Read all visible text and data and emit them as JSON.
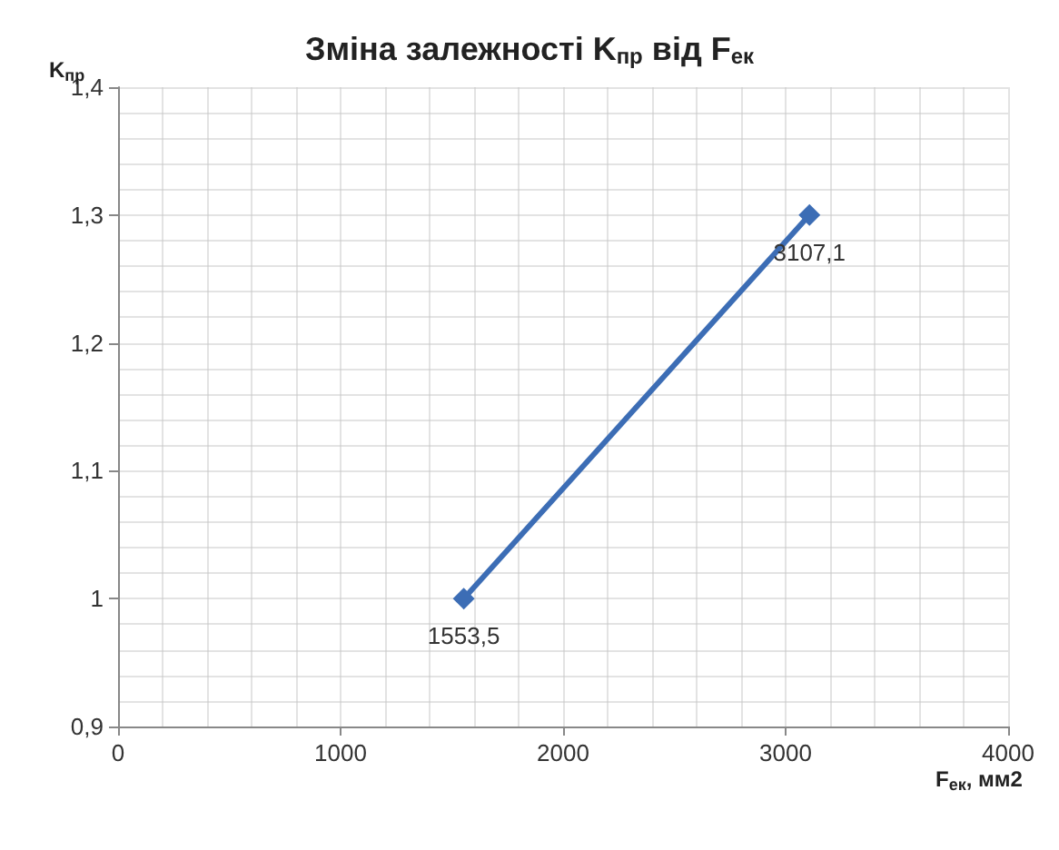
{
  "chart_data": {
    "type": "line",
    "title": "Зміна залежності K$_{пр}$ від F$_{ек}$",
    "xlabel": "F$_{ек}$, мм2",
    "ylabel": "K$_{пр}$",
    "x": [
      1553.5,
      3107.1
    ],
    "series": [
      {
        "color": "#3c6db5",
        "values": [
          1,
          1.3
        ]
      }
    ],
    "annotations": [
      {
        "text": "1553,5",
        "x": 1553.5,
        "y": 1
      },
      {
        "text": "3107,1",
        "x": 3107.1,
        "y": 1.3
      }
    ],
    "xlim": [
      0,
      4000
    ],
    "xticks": [
      0,
      {
        "value": 200,
        "label": null
      },
      {
        "value": 400,
        "label": null
      },
      {
        "value": 600,
        "label": null
      },
      {
        "value": 800,
        "label": null
      },
      1000,
      {
        "value": 1200,
        "label": null
      },
      {
        "value": 1400,
        "label": null
      },
      {
        "value": 1600,
        "label": null
      },
      {
        "value": 1800,
        "label": null
      },
      2000,
      {
        "value": 2200,
        "label": null
      },
      {
        "value": 2400,
        "label": null
      },
      {
        "value": 2600,
        "label": null
      },
      {
        "value": 2800,
        "label": null
      },
      3000,
      {
        "value": 3200,
        "label": null
      },
      {
        "value": 3400,
        "label": null
      },
      {
        "value": 3600,
        "label": null
      },
      {
        "value": 3800,
        "label": null
      },
      4000
    ],
    "ylim": [
      0.9,
      1.4
    ],
    "yticks": [
      {
        "value": 0.9,
        "label": "0,9"
      },
      {
        "value": 0.92,
        "label": null
      },
      {
        "value": 0.94,
        "label": null
      },
      {
        "value": 0.96,
        "label": null
      },
      {
        "value": 0.98,
        "label": null
      },
      1,
      {
        "value": 1.02,
        "label": null
      },
      {
        "value": 1.04,
        "label": null
      },
      {
        "value": 1.06,
        "label": null
      },
      {
        "value": 1.08,
        "label": null
      },
      {
        "value": 1.1,
        "label": "1,1"
      },
      {
        "value": 1.12,
        "label": null
      },
      {
        "value": 1.14,
        "label": null
      },
      {
        "value": 1.16,
        "label": null
      },
      {
        "value": 1.18,
        "label": null
      },
      {
        "value": 1.2,
        "label": "1,2"
      },
      {
        "value": 1.22,
        "label": null
      },
      {
        "value": 1.24,
        "label": null
      },
      {
        "value": 1.26,
        "label": null
      },
      {
        "value": 1.28,
        "label": null
      },
      {
        "value": 1.3,
        "label": "1,3"
      },
      {
        "value": 1.32,
        "label": null
      },
      {
        "value": 1.34,
        "label": null
      },
      {
        "value": 1.36,
        "label": null
      },
      {
        "value": 1.38,
        "label": null
      },
      {
        "value": 1.4,
        "label": "1,4"
      }
    ],
    "grid": true,
    "marker": "diamond",
    "line_style": "solid"
  }
}
